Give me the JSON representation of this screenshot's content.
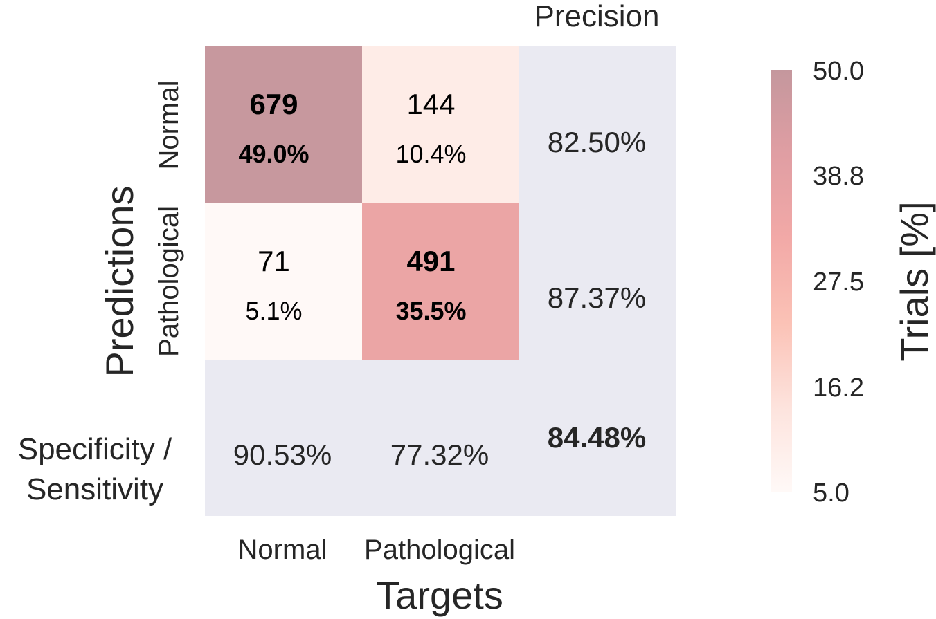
{
  "chart_data": {
    "type": "heatmap",
    "title": "",
    "xlabel": "Targets",
    "ylabel": "Predictions",
    "x_categories": [
      "Normal",
      "Pathological"
    ],
    "y_categories": [
      "Normal",
      "Pathological"
    ],
    "counts": [
      [
        679,
        144
      ],
      [
        71,
        491
      ]
    ],
    "percent_labels": [
      [
        "49.0%",
        "10.4%"
      ],
      [
        "5.1%",
        "35.5%"
      ]
    ],
    "percent_values": [
      [
        49.0,
        10.4
      ],
      [
        5.1,
        35.5
      ]
    ],
    "precision_header": "Precision",
    "precision": [
      "82.50%",
      "87.37%"
    ],
    "summary_row_label": [
      "Specificity /",
      "Sensitivity"
    ],
    "specificity_sensitivity": [
      "90.53%",
      "77.32%"
    ],
    "accuracy": "84.48%",
    "colorbar": {
      "label": "Trials [%]",
      "range": [
        5.0,
        50.0
      ],
      "ticks": [
        "50.0",
        "38.8",
        "27.5",
        "16.2",
        "5.0"
      ],
      "colors": [
        "#fff9f7",
        "#fde3dd",
        "#fbc2b6",
        "#f2a9a7",
        "#e09ea3",
        "#c4979d"
      ]
    },
    "summary_fill": "#eaeaf2"
  }
}
